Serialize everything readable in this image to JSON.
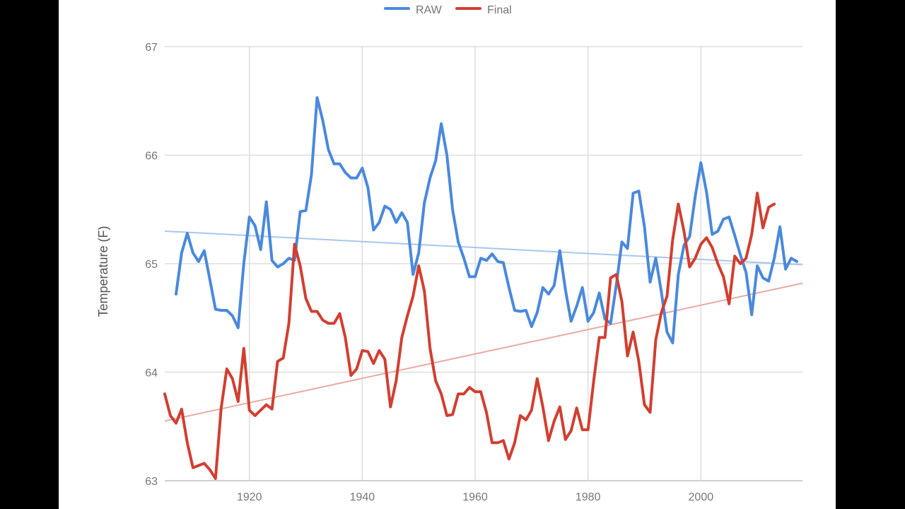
{
  "chart_data": {
    "type": "line",
    "title": "",
    "xlabel": "",
    "ylabel": "Temperature (F)",
    "xlim": [
      1905,
      2018
    ],
    "ylim": [
      63,
      67
    ],
    "x_ticks": [
      "1920",
      "1940",
      "1960",
      "1980",
      "2000"
    ],
    "y_ticks": [
      "63",
      "64",
      "65",
      "66",
      "67"
    ],
    "grid": true,
    "legend_position": "top",
    "series": [
      {
        "name": "RAW",
        "color": "#4a89dc",
        "points": [
          [
            1907,
            64.72
          ],
          [
            1908,
            65.1
          ],
          [
            1909,
            65.28
          ],
          [
            1910,
            65.1
          ],
          [
            1911,
            65.02
          ],
          [
            1912,
            65.12
          ],
          [
            1913,
            64.85
          ],
          [
            1914,
            64.58
          ],
          [
            1915,
            64.57
          ],
          [
            1916,
            64.57
          ],
          [
            1917,
            64.52
          ],
          [
            1918,
            64.41
          ],
          [
            1919,
            65.0
          ],
          [
            1920,
            65.43
          ],
          [
            1921,
            65.35
          ],
          [
            1922,
            65.13
          ],
          [
            1923,
            65.57
          ],
          [
            1924,
            65.03
          ],
          [
            1925,
            64.97
          ],
          [
            1926,
            65.0
          ],
          [
            1927,
            65.05
          ],
          [
            1928,
            65.03
          ],
          [
            1929,
            65.48
          ],
          [
            1930,
            65.49
          ],
          [
            1931,
            65.82
          ],
          [
            1932,
            66.53
          ],
          [
            1933,
            66.32
          ],
          [
            1934,
            66.05
          ],
          [
            1935,
            65.92
          ],
          [
            1936,
            65.92
          ],
          [
            1937,
            65.84
          ],
          [
            1938,
            65.79
          ],
          [
            1939,
            65.79
          ],
          [
            1940,
            65.88
          ],
          [
            1941,
            65.7
          ],
          [
            1942,
            65.31
          ],
          [
            1943,
            65.38
          ],
          [
            1944,
            65.53
          ],
          [
            1945,
            65.5
          ],
          [
            1946,
            65.38
          ],
          [
            1947,
            65.47
          ],
          [
            1948,
            65.38
          ],
          [
            1949,
            64.9
          ],
          [
            1950,
            65.1
          ],
          [
            1951,
            65.56
          ],
          [
            1952,
            65.79
          ],
          [
            1953,
            65.95
          ],
          [
            1954,
            66.29
          ],
          [
            1955,
            66.0
          ],
          [
            1956,
            65.5
          ],
          [
            1957,
            65.2
          ],
          [
            1958,
            65.05
          ],
          [
            1959,
            64.88
          ],
          [
            1960,
            64.88
          ],
          [
            1961,
            65.05
          ],
          [
            1962,
            65.03
          ],
          [
            1963,
            65.09
          ],
          [
            1964,
            65.02
          ],
          [
            1965,
            65.01
          ],
          [
            1966,
            64.78
          ],
          [
            1967,
            64.57
          ],
          [
            1968,
            64.56
          ],
          [
            1969,
            64.57
          ],
          [
            1970,
            64.42
          ],
          [
            1971,
            64.55
          ],
          [
            1972,
            64.78
          ],
          [
            1973,
            64.72
          ],
          [
            1974,
            64.8
          ],
          [
            1975,
            65.12
          ],
          [
            1976,
            64.76
          ],
          [
            1977,
            64.47
          ],
          [
            1978,
            64.61
          ],
          [
            1979,
            64.78
          ],
          [
            1980,
            64.47
          ],
          [
            1981,
            64.55
          ],
          [
            1982,
            64.73
          ],
          [
            1983,
            64.49
          ],
          [
            1984,
            64.45
          ],
          [
            1985,
            64.8
          ],
          [
            1986,
            65.2
          ],
          [
            1987,
            65.14
          ],
          [
            1988,
            65.65
          ],
          [
            1989,
            65.67
          ],
          [
            1990,
            65.34
          ],
          [
            1991,
            64.83
          ],
          [
            1992,
            65.05
          ],
          [
            1993,
            64.74
          ],
          [
            1994,
            64.37
          ],
          [
            1995,
            64.27
          ],
          [
            1996,
            64.9
          ],
          [
            1997,
            65.17
          ],
          [
            1998,
            65.25
          ],
          [
            1999,
            65.62
          ],
          [
            2000,
            65.93
          ],
          [
            2001,
            65.66
          ],
          [
            2002,
            65.27
          ],
          [
            2003,
            65.3
          ],
          [
            2004,
            65.41
          ],
          [
            2005,
            65.43
          ],
          [
            2006,
            65.26
          ],
          [
            2007,
            65.08
          ],
          [
            2008,
            64.92
          ],
          [
            2009,
            64.53
          ],
          [
            2010,
            64.98
          ],
          [
            2011,
            64.87
          ],
          [
            2012,
            64.84
          ],
          [
            2013,
            65.05
          ],
          [
            2014,
            65.34
          ],
          [
            2015,
            64.95
          ],
          [
            2016,
            65.05
          ],
          [
            2017,
            65.02
          ]
        ]
      },
      {
        "name": "Final",
        "color": "#d13f31",
        "points": [
          [
            1905,
            63.8
          ],
          [
            1906,
            63.6
          ],
          [
            1907,
            63.53
          ],
          [
            1908,
            63.66
          ],
          [
            1909,
            63.35
          ],
          [
            1910,
            63.12
          ],
          [
            1911,
            63.14
          ],
          [
            1912,
            63.16
          ],
          [
            1913,
            63.1
          ],
          [
            1914,
            63.02
          ],
          [
            1915,
            63.67
          ],
          [
            1916,
            64.03
          ],
          [
            1917,
            63.94
          ],
          [
            1918,
            63.73
          ],
          [
            1919,
            64.22
          ],
          [
            1920,
            63.65
          ],
          [
            1921,
            63.6
          ],
          [
            1922,
            63.65
          ],
          [
            1923,
            63.7
          ],
          [
            1924,
            63.66
          ],
          [
            1925,
            64.1
          ],
          [
            1926,
            64.13
          ],
          [
            1927,
            64.45
          ],
          [
            1928,
            65.18
          ],
          [
            1929,
            64.98
          ],
          [
            1930,
            64.68
          ],
          [
            1931,
            64.56
          ],
          [
            1932,
            64.56
          ],
          [
            1933,
            64.48
          ],
          [
            1934,
            64.45
          ],
          [
            1935,
            64.45
          ],
          [
            1936,
            64.54
          ],
          [
            1937,
            64.32
          ],
          [
            1938,
            63.97
          ],
          [
            1939,
            64.03
          ],
          [
            1940,
            64.2
          ],
          [
            1941,
            64.19
          ],
          [
            1942,
            64.08
          ],
          [
            1943,
            64.2
          ],
          [
            1944,
            64.12
          ],
          [
            1945,
            63.68
          ],
          [
            1946,
            63.92
          ],
          [
            1947,
            64.32
          ],
          [
            1948,
            64.52
          ],
          [
            1949,
            64.7
          ],
          [
            1950,
            64.98
          ],
          [
            1951,
            64.75
          ],
          [
            1952,
            64.22
          ],
          [
            1953,
            63.92
          ],
          [
            1954,
            63.8
          ],
          [
            1955,
            63.6
          ],
          [
            1956,
            63.61
          ],
          [
            1957,
            63.8
          ],
          [
            1958,
            63.8
          ],
          [
            1959,
            63.86
          ],
          [
            1960,
            63.82
          ],
          [
            1961,
            63.82
          ],
          [
            1962,
            63.63
          ],
          [
            1963,
            63.35
          ],
          [
            1964,
            63.35
          ],
          [
            1965,
            63.37
          ],
          [
            1966,
            63.2
          ],
          [
            1967,
            63.35
          ],
          [
            1968,
            63.6
          ],
          [
            1969,
            63.56
          ],
          [
            1970,
            63.65
          ],
          [
            1971,
            63.94
          ],
          [
            1972,
            63.68
          ],
          [
            1973,
            63.37
          ],
          [
            1974,
            63.55
          ],
          [
            1975,
            63.68
          ],
          [
            1976,
            63.38
          ],
          [
            1977,
            63.46
          ],
          [
            1978,
            63.67
          ],
          [
            1979,
            63.47
          ],
          [
            1980,
            63.47
          ],
          [
            1981,
            63.92
          ],
          [
            1982,
            64.32
          ],
          [
            1983,
            64.32
          ],
          [
            1984,
            64.87
          ],
          [
            1985,
            64.9
          ],
          [
            1986,
            64.65
          ],
          [
            1987,
            64.15
          ],
          [
            1988,
            64.37
          ],
          [
            1989,
            64.1
          ],
          [
            1990,
            63.7
          ],
          [
            1991,
            63.63
          ],
          [
            1992,
            64.3
          ],
          [
            1993,
            64.55
          ],
          [
            1994,
            64.7
          ],
          [
            1995,
            65.22
          ],
          [
            1996,
            65.55
          ],
          [
            1997,
            65.3
          ],
          [
            1998,
            64.97
          ],
          [
            1999,
            65.05
          ],
          [
            2000,
            65.18
          ],
          [
            2001,
            65.24
          ],
          [
            2002,
            65.15
          ],
          [
            2003,
            65.0
          ],
          [
            2004,
            64.88
          ],
          [
            2005,
            64.63
          ],
          [
            2006,
            65.07
          ],
          [
            2007,
            65.0
          ],
          [
            2008,
            65.05
          ],
          [
            2009,
            65.27
          ],
          [
            2010,
            65.65
          ],
          [
            2011,
            65.33
          ],
          [
            2012,
            65.52
          ],
          [
            2013,
            65.55
          ]
        ]
      }
    ],
    "trendlines": [
      {
        "name": "RAW trend",
        "color": "#a8c7ec",
        "from": [
          1905,
          65.3
        ],
        "to": [
          2018,
          64.99
        ]
      },
      {
        "name": "Final trend",
        "color": "#eaa9a3",
        "from": [
          1905,
          63.55
        ],
        "to": [
          2018,
          64.82
        ]
      }
    ]
  }
}
